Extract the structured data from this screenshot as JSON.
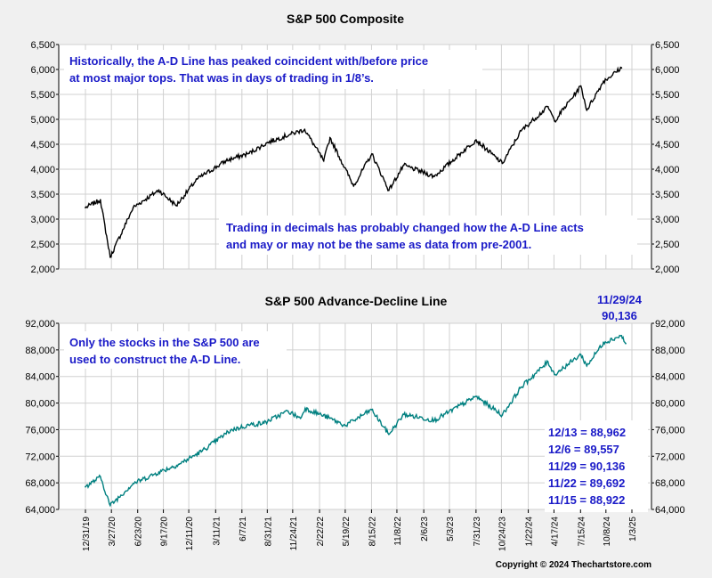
{
  "chart_data": [
    {
      "type": "line",
      "title": "S&P 500 Composite",
      "ylim": [
        2000,
        6500
      ],
      "yticks": [
        "2,000",
        "2,500",
        "3,000",
        "3,500",
        "4,000",
        "4,500",
        "5,000",
        "5,500",
        "6,000",
        "6,500"
      ],
      "grid": true,
      "series": [
        {
          "color": "#000000",
          "x": [
            "12/31/19",
            "2/19/20",
            "3/23/20",
            "6/8/20",
            "9/2/20",
            "10/30/20",
            "1/8/21",
            "4/15/21",
            "7/1/21",
            "9/2/21",
            "11/18/21",
            "1/3/22",
            "3/8/22",
            "3/29/22",
            "6/16/22",
            "8/16/22",
            "10/12/22",
            "12/1/22",
            "3/13/23",
            "7/31/23",
            "10/27/23",
            "12/29/23",
            "3/28/24",
            "4/19/24",
            "7/16/24",
            "8/5/24",
            "9/30/24",
            "11/29/24"
          ],
          "values": [
            3230,
            3386,
            2237,
            3232,
            3580,
            3270,
            3803,
            4170,
            4320,
            4537,
            4704,
            4796,
            4170,
            4631,
            3666,
            4305,
            3577,
            4080,
            3855,
            4588,
            4117,
            4770,
            5254,
            4967,
            5667,
            5186,
            5762,
            6032
          ]
        }
      ],
      "annotations": [
        "Historically, the A-D Line has peaked coincident with/before price",
        "at most major tops.  That was in days of trading in 1/8’s.",
        "Trading in decimals has probably changed how the A-D Line acts",
        "and may or may not be the same as data from pre-2001."
      ]
    },
    {
      "type": "line",
      "title": "S&P 500 Advance-Decline Line",
      "ylim": [
        64000,
        92000
      ],
      "yticks": [
        "64,000",
        "68,000",
        "72,000",
        "76,000",
        "80,000",
        "84,000",
        "88,000",
        "92,000"
      ],
      "grid": true,
      "xticks": [
        "12/31/19",
        "3/27/20",
        "6/23/20",
        "9/17/20",
        "12/11/20",
        "3/11/21",
        "6/7/21",
        "8/31/21",
        "11/24/21",
        "2/22/22",
        "5/19/22",
        "8/15/22",
        "11/8/22",
        "2/6/23",
        "5/3/23",
        "7/31/23",
        "10/24/23",
        "1/22/24",
        "4/17/24",
        "7/15/24",
        "10/8/24",
        "1/3/25"
      ],
      "series": [
        {
          "color": "#008080",
          "x": [
            "12/31/19",
            "2/19/20",
            "3/23/20",
            "6/8/20",
            "9/2/20",
            "11/9/20",
            "1/25/21",
            "4/30/21",
            "6/30/21",
            "8/20/21",
            "11/8/21",
            "12/20/21",
            "1/5/22",
            "3/29/22",
            "5/19/22",
            "8/15/22",
            "10/12/22",
            "12/1/22",
            "3/13/23",
            "7/31/23",
            "10/27/23",
            "12/29/23",
            "3/28/24",
            "4/19/24",
            "7/16/24",
            "8/5/24",
            "9/30/24",
            "11/29/24",
            "12/13/24"
          ],
          "values": [
            67400,
            68900,
            64600,
            67900,
            69600,
            70800,
            72800,
            75900,
            76700,
            77000,
            78800,
            77700,
            79200,
            77700,
            76600,
            79000,
            75300,
            78300,
            77400,
            81000,
            78200,
            82400,
            86200,
            84300,
            87300,
            85600,
            89100,
            90136,
            88962
          ]
        }
      ],
      "callout": [
        "11/29/24",
        "90,136"
      ],
      "note": [
        "Only the stocks in the S&P 500 are",
        "used to construct the A-D Line."
      ],
      "recent_values": [
        "12/13 = 88,962",
        "12/6 = 89,557",
        "11/29 = 90,136",
        "11/22 = 89,692",
        "11/15 = 88,922"
      ]
    }
  ],
  "copyright": "Copyright © 2024 Thechartstore.com",
  "colors": {
    "background": "#f0f0f0",
    "plot": "#ffffff",
    "annotation": "#1a1ac8",
    "price": "#000000",
    "ad_line": "#008080"
  }
}
